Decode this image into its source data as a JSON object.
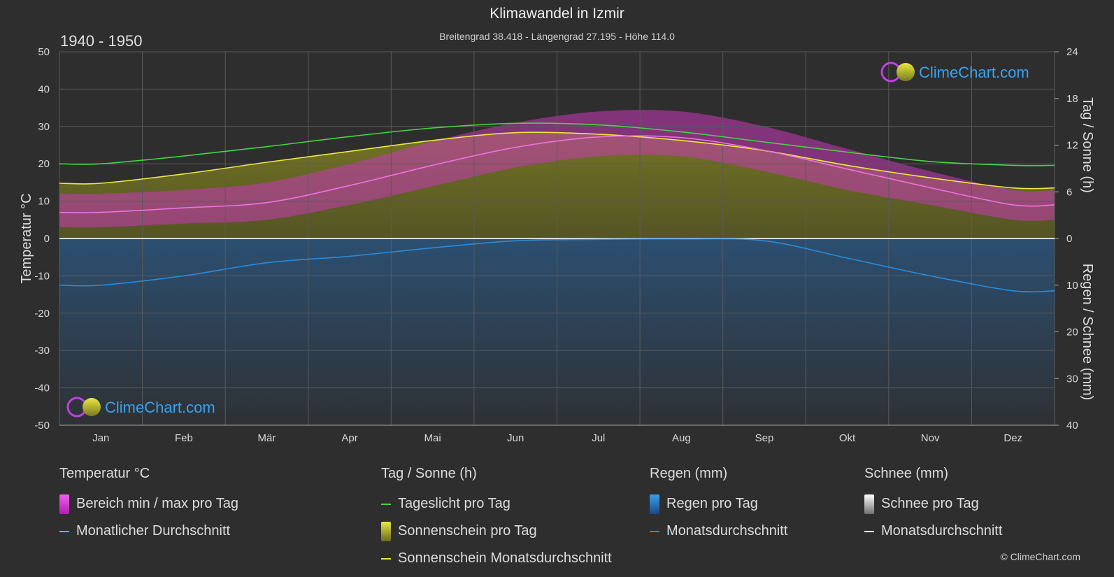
{
  "header": {
    "title": "Klimawandel in Izmir",
    "subtitle": "Breitengrad 38.418 - Längengrad 27.195 - Höhe 114.0",
    "period": "1940 - 1950"
  },
  "branding": {
    "logo_text": "ClimeChart.com",
    "copyright": "© ClimeChart.com"
  },
  "colors": {
    "background": "#2e2e2e",
    "daylight": "#44d444",
    "sunshine_line": "#e8e840",
    "sunshine_fill": "#9a9a28",
    "temp_range": "#d040c0",
    "temp_avg": "#f070e0",
    "rain": "#2a8ad8",
    "snow": "#ffffff"
  },
  "chart_data": {
    "type": "line",
    "x_categories": [
      "Jan",
      "Feb",
      "Mär",
      "Apr",
      "Mai",
      "Jun",
      "Jul",
      "Aug",
      "Sep",
      "Okt",
      "Nov",
      "Dez"
    ],
    "left_axis": {
      "label": "Temperatur °C",
      "range": [
        -50,
        50
      ],
      "ticks": [
        50,
        40,
        30,
        20,
        10,
        0,
        -10,
        -20,
        -30,
        -40,
        -50
      ]
    },
    "right_axis_top": {
      "label": "Tag / Sonne (h)",
      "range": [
        0,
        24
      ],
      "ticks": [
        24,
        18,
        12,
        6,
        0
      ]
    },
    "right_axis_bottom": {
      "label": "Regen / Schnee (mm)",
      "range": [
        0,
        40
      ],
      "ticks": [
        0,
        10,
        20,
        30,
        40
      ]
    },
    "grid": true,
    "series": [
      {
        "name": "Tageslicht pro Tag",
        "unit": "h",
        "values": [
          9.6,
          10.6,
          11.8,
          13.1,
          14.2,
          14.8,
          14.6,
          13.7,
          12.4,
          11.1,
          9.9,
          9.4
        ]
      },
      {
        "name": "Sonnenschein Monatsdurchschnitt",
        "unit": "h",
        "values": [
          7.1,
          8.3,
          9.8,
          11.2,
          12.6,
          13.6,
          13.4,
          12.6,
          11.3,
          9.4,
          7.8,
          6.5
        ]
      },
      {
        "name": "Monatlicher Durchschnitt",
        "unit": "°C",
        "values": [
          7.0,
          8.2,
          9.6,
          14.2,
          19.6,
          24.4,
          27.2,
          27.0,
          23.6,
          18.6,
          13.6,
          9.0
        ]
      },
      {
        "name": "Regen Monatsdurchschnitt",
        "unit": "mm",
        "values": [
          10.0,
          8.0,
          5.2,
          3.8,
          2.0,
          0.5,
          0.2,
          0.1,
          0.5,
          4.2,
          8.0,
          11.2
        ]
      }
    ],
    "temp_range_daily": {
      "min": [
        3,
        4,
        5,
        9,
        14,
        19,
        22,
        22,
        18,
        13,
        9,
        5
      ],
      "max": [
        12,
        13,
        15,
        20,
        26,
        31,
        34,
        34,
        30,
        24,
        18,
        13
      ]
    }
  },
  "legend": {
    "groups": [
      {
        "heading": "Temperatur °C",
        "items": [
          {
            "label": "Bereich min / max pro Tag",
            "kind": "box",
            "color": "#d040c0"
          },
          {
            "label": "Monatlicher Durchschnitt",
            "kind": "line",
            "color": "#f070e0"
          }
        ]
      },
      {
        "heading": "Tag / Sonne (h)",
        "items": [
          {
            "label": "Tageslicht pro Tag",
            "kind": "line",
            "color": "#44d444"
          },
          {
            "label": "Sonnenschein pro Tag",
            "kind": "box",
            "color": "#c8c830"
          },
          {
            "label": "Sonnenschein Monatsdurchschnitt",
            "kind": "line",
            "color": "#e8e840"
          }
        ]
      },
      {
        "heading": "Regen (mm)",
        "items": [
          {
            "label": "Regen pro Tag",
            "kind": "box",
            "color": "#2a8ad8"
          },
          {
            "label": "Monatsdurchschnitt",
            "kind": "line",
            "color": "#2a8ad8"
          }
        ]
      },
      {
        "heading": "Schnee (mm)",
        "items": [
          {
            "label": "Schnee pro Tag",
            "kind": "box",
            "color": "#e0e0e0"
          },
          {
            "label": "Monatsdurchschnitt",
            "kind": "line",
            "color": "#ffffff"
          }
        ]
      }
    ]
  }
}
